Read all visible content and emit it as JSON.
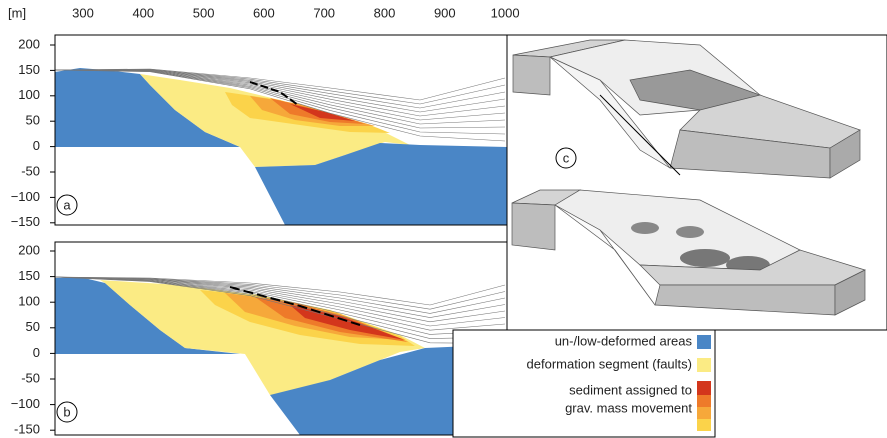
{
  "x_axis": {
    "unit": "[m]",
    "ticks": [
      "300",
      "400",
      "500",
      "600",
      "700",
      "800",
      "900",
      "1000"
    ]
  },
  "panels": [
    {
      "label": "a",
      "y_ticks": [
        "200",
        "150",
        "100",
        "50",
        "0",
        "-50",
        "−100",
        "−150"
      ]
    },
    {
      "label": "b",
      "y_ticks": [
        "200",
        "150",
        "100",
        "50",
        "0",
        "-50",
        "−100",
        "-150"
      ]
    }
  ],
  "inset_label": "c",
  "legend": {
    "items": [
      "un-/low-deformed areas",
      "deformation segment (faults)"
    ],
    "sediment": [
      "sediment assigned to",
      "grav. mass movement"
    ]
  }
}
